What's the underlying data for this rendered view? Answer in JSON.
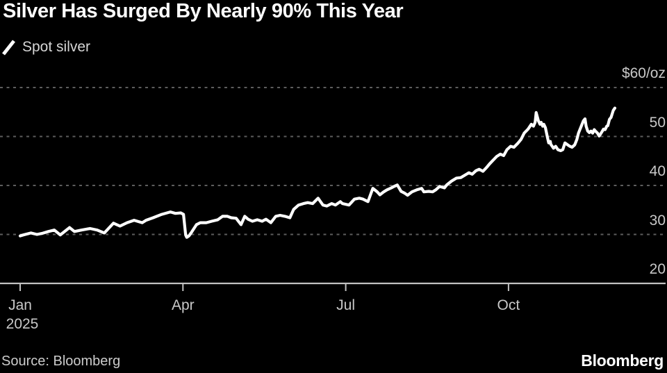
{
  "title": "Silver Has Surged By Nearly 90% This Year",
  "legend": {
    "label": "Spot silver"
  },
  "source_text": "Source: Bloomberg",
  "brand_logo_text": "Bloomberg",
  "colors": {
    "background": "#000000",
    "line": "#ffffff",
    "grid": "#5d5d5d",
    "axis": "#c2c2c2",
    "title_text": "#ffffff",
    "label_text": "#c8c8c8"
  },
  "chart_data": {
    "type": "line",
    "title": "Silver Has Surged By Nearly 90% This Year",
    "series": [
      {
        "name": "Spot silver",
        "unit": "$/oz",
        "x_unit": "months_since_jan_2025",
        "points": [
          [
            0.0,
            29.7
          ],
          [
            0.06,
            29.9
          ],
          [
            0.2,
            30.3
          ],
          [
            0.31,
            30.0
          ],
          [
            0.4,
            30.2
          ],
          [
            0.52,
            30.6
          ],
          [
            0.63,
            30.9
          ],
          [
            0.74,
            29.9
          ],
          [
            0.91,
            31.4
          ],
          [
            1.0,
            30.6
          ],
          [
            1.13,
            30.9
          ],
          [
            1.29,
            31.2
          ],
          [
            1.42,
            30.9
          ],
          [
            1.55,
            30.3
          ],
          [
            1.72,
            32.3
          ],
          [
            1.84,
            31.7
          ],
          [
            1.97,
            32.4
          ],
          [
            2.1,
            32.9
          ],
          [
            2.25,
            32.4
          ],
          [
            2.32,
            32.9
          ],
          [
            2.45,
            33.4
          ],
          [
            2.61,
            34.1
          ],
          [
            2.77,
            34.6
          ],
          [
            2.86,
            34.3
          ],
          [
            2.96,
            34.4
          ],
          [
            3.01,
            34.1
          ],
          [
            3.05,
            29.9
          ],
          [
            3.07,
            29.4
          ],
          [
            3.11,
            29.7
          ],
          [
            3.15,
            30.3
          ],
          [
            3.25,
            32.0
          ],
          [
            3.32,
            32.4
          ],
          [
            3.43,
            32.4
          ],
          [
            3.53,
            32.7
          ],
          [
            3.64,
            33.0
          ],
          [
            3.73,
            33.7
          ],
          [
            3.82,
            33.7
          ],
          [
            3.89,
            33.4
          ],
          [
            3.98,
            33.3
          ],
          [
            4.07,
            32.0
          ],
          [
            4.14,
            33.7
          ],
          [
            4.2,
            33.1
          ],
          [
            4.28,
            32.7
          ],
          [
            4.37,
            33.0
          ],
          [
            4.46,
            32.7
          ],
          [
            4.53,
            33.1
          ],
          [
            4.62,
            32.4
          ],
          [
            4.71,
            33.7
          ],
          [
            4.79,
            33.9
          ],
          [
            4.88,
            33.7
          ],
          [
            4.97,
            33.4
          ],
          [
            5.04,
            35.1
          ],
          [
            5.13,
            36.0
          ],
          [
            5.22,
            36.3
          ],
          [
            5.3,
            36.5
          ],
          [
            5.39,
            36.3
          ],
          [
            5.49,
            37.4
          ],
          [
            5.58,
            36.0
          ],
          [
            5.65,
            35.8
          ],
          [
            5.74,
            36.3
          ],
          [
            5.81,
            36.0
          ],
          [
            5.9,
            36.7
          ],
          [
            5.94,
            36.3
          ],
          [
            6.06,
            36.0
          ],
          [
            6.16,
            37.2
          ],
          [
            6.25,
            37.4
          ],
          [
            6.32,
            37.2
          ],
          [
            6.41,
            36.7
          ],
          [
            6.5,
            39.4
          ],
          [
            6.58,
            38.7
          ],
          [
            6.63,
            38.1
          ],
          [
            6.7,
            38.7
          ],
          [
            6.76,
            39.1
          ],
          [
            6.84,
            39.5
          ],
          [
            6.89,
            39.8
          ],
          [
            6.95,
            40.1
          ],
          [
            7.02,
            38.8
          ],
          [
            7.09,
            38.4
          ],
          [
            7.14,
            38.0
          ],
          [
            7.22,
            38.7
          ],
          [
            7.31,
            39.1
          ],
          [
            7.4,
            39.4
          ],
          [
            7.44,
            38.7
          ],
          [
            7.53,
            38.8
          ],
          [
            7.6,
            38.7
          ],
          [
            7.66,
            39.1
          ],
          [
            7.73,
            39.8
          ],
          [
            7.82,
            39.5
          ],
          [
            7.86,
            40.1
          ],
          [
            7.95,
            40.9
          ],
          [
            8.04,
            41.5
          ],
          [
            8.12,
            41.6
          ],
          [
            8.21,
            42.2
          ],
          [
            8.27,
            42.6
          ],
          [
            8.33,
            42.3
          ],
          [
            8.4,
            43.0
          ],
          [
            8.46,
            43.3
          ],
          [
            8.53,
            42.9
          ],
          [
            8.59,
            43.6
          ],
          [
            8.65,
            44.4
          ],
          [
            8.72,
            45.2
          ],
          [
            8.78,
            45.9
          ],
          [
            8.85,
            46.4
          ],
          [
            8.91,
            46.1
          ],
          [
            8.97,
            47.3
          ],
          [
            9.04,
            48.0
          ],
          [
            9.1,
            47.8
          ],
          [
            9.17,
            48.6
          ],
          [
            9.23,
            49.4
          ],
          [
            9.29,
            50.7
          ],
          [
            9.36,
            51.5
          ],
          [
            9.42,
            52.5
          ],
          [
            9.46,
            52.1
          ],
          [
            9.49,
            52.9
          ],
          [
            9.51,
            54.9
          ],
          [
            9.55,
            53.2
          ],
          [
            9.58,
            52.5
          ],
          [
            9.6,
            52.9
          ],
          [
            9.63,
            52.1
          ],
          [
            9.65,
            52.5
          ],
          [
            9.68,
            51.8
          ],
          [
            9.72,
            49.7
          ],
          [
            9.74,
            48.7
          ],
          [
            9.77,
            49.0
          ],
          [
            9.78,
            48.4
          ],
          [
            9.83,
            47.6
          ],
          [
            9.87,
            48.0
          ],
          [
            9.91,
            47.3
          ],
          [
            9.96,
            47.1
          ],
          [
            10.0,
            47.3
          ],
          [
            10.04,
            48.7
          ],
          [
            10.09,
            48.3
          ],
          [
            10.13,
            48.0
          ],
          [
            10.17,
            47.8
          ],
          [
            10.22,
            48.3
          ],
          [
            10.26,
            49.4
          ],
          [
            10.29,
            50.7
          ],
          [
            10.34,
            52.1
          ],
          [
            10.38,
            53.2
          ],
          [
            10.41,
            53.6
          ],
          [
            10.43,
            52.1
          ],
          [
            10.46,
            51.1
          ],
          [
            10.49,
            50.8
          ],
          [
            10.52,
            51.1
          ],
          [
            10.55,
            50.7
          ],
          [
            10.58,
            51.4
          ],
          [
            10.6,
            51.1
          ],
          [
            10.64,
            50.7
          ],
          [
            10.67,
            50.1
          ],
          [
            10.69,
            50.4
          ],
          [
            10.73,
            51.1
          ],
          [
            10.75,
            51.5
          ],
          [
            10.78,
            51.4
          ],
          [
            10.81,
            52.1
          ],
          [
            10.83,
            52.2
          ],
          [
            10.86,
            53.5
          ],
          [
            10.89,
            53.9
          ],
          [
            10.93,
            55.3
          ],
          [
            10.96,
            55.8
          ]
        ]
      }
    ],
    "x_axis": {
      "tick_months": [
        0,
        3,
        6,
        9
      ],
      "tick_labels": [
        "Jan",
        "Apr",
        "Jul",
        "Oct"
      ],
      "year_label": "2025",
      "range_months": [
        0,
        11.9
      ]
    },
    "y_axis": {
      "ticks": [
        60,
        50,
        40,
        30,
        20
      ],
      "tick_labels": [
        "$60/oz",
        "50",
        "40",
        "30",
        "20"
      ],
      "range": [
        20,
        60
      ],
      "gridline_values": [
        60,
        50,
        40,
        30
      ],
      "grid_style": "dashed",
      "labels_side": "right"
    },
    "legend_position": "top-left"
  }
}
